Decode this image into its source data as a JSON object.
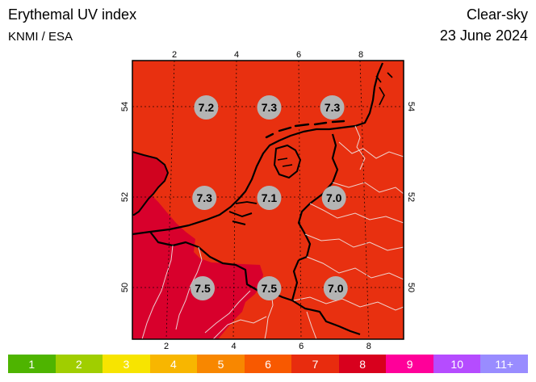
{
  "header": {
    "title": "Erythemal UV index",
    "source": "KNMI / ESA",
    "sky": "Clear-sky",
    "date": "23 June 2024"
  },
  "map": {
    "lon_labels": [
      "2",
      "4",
      "6",
      "8"
    ],
    "lat_labels": [
      "54",
      "52",
      "50"
    ],
    "colors": {
      "uv7": "#e83010",
      "uv8": "#d8002c",
      "water": "#d0031f",
      "coast": "#000000",
      "borders": "#f0f0f0",
      "marker": "#b4b4b4"
    },
    "values": [
      {
        "lon": 3,
        "lat": 54,
        "uv": "7.2"
      },
      {
        "lon": 5,
        "lat": 54,
        "uv": "7.3"
      },
      {
        "lon": 7,
        "lat": 54,
        "uv": "7.3"
      },
      {
        "lon": 3,
        "lat": 52,
        "uv": "7.3"
      },
      {
        "lon": 5,
        "lat": 52,
        "uv": "7.1"
      },
      {
        "lon": 7,
        "lat": 52,
        "uv": "7.0"
      },
      {
        "lon": 3,
        "lat": 50,
        "uv": "7.5"
      },
      {
        "lon": 5,
        "lat": 50,
        "uv": "7.5"
      },
      {
        "lon": 7,
        "lat": 50,
        "uv": "7.0"
      }
    ]
  },
  "legend": [
    {
      "label": "1",
      "color": "#4eb400"
    },
    {
      "label": "2",
      "color": "#a0ce00"
    },
    {
      "label": "3",
      "color": "#f7e400"
    },
    {
      "label": "4",
      "color": "#f8b600"
    },
    {
      "label": "5",
      "color": "#f88700"
    },
    {
      "label": "6",
      "color": "#f85900"
    },
    {
      "label": "7",
      "color": "#e82c0e"
    },
    {
      "label": "8",
      "color": "#d8001d"
    },
    {
      "label": "9",
      "color": "#ff0099"
    },
    {
      "label": "10",
      "color": "#b54cff"
    },
    {
      "label": "11+",
      "color": "#998cff"
    }
  ]
}
